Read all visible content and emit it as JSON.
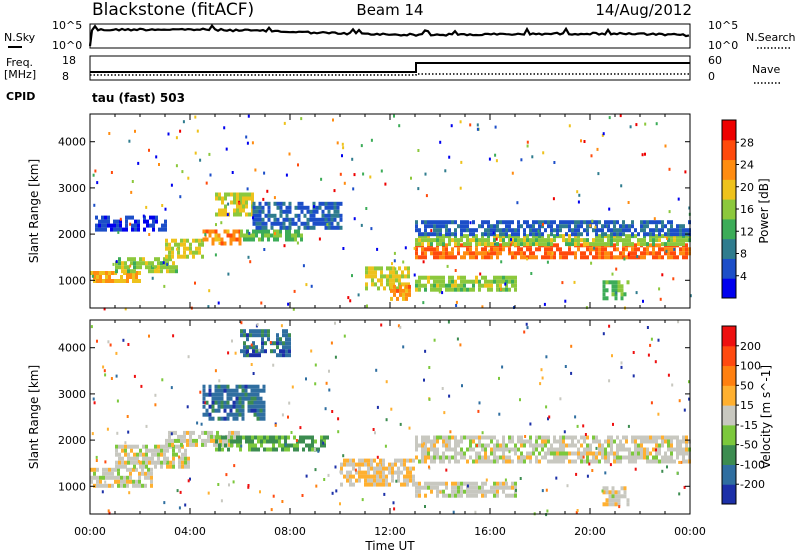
{
  "header": {
    "radar": "Blackstone (fitACF)",
    "beam": "Beam 14",
    "date": "14/Aug/2012"
  },
  "summary_panel": {
    "nsky_label": "N.Sky",
    "nsky_ticks": [
      "10^5",
      "10^0"
    ],
    "nsearch_label": "N.Search",
    "nsearch_ticks": [
      "10^5",
      "10^0"
    ],
    "freq_label_1": "Freq.",
    "freq_label_2": "[MHz]",
    "freq_ticks": [
      "18",
      "8"
    ],
    "nave_label": "Nave",
    "nave_ticks": [
      "60",
      "0"
    ],
    "cpid_label": "CPID",
    "cpid_text": "tau (fast) 503"
  },
  "chart_data": [
    {
      "type": "heatmap",
      "quantity": "Power",
      "ylabel": "Slant Range [km]",
      "yticks": [
        "1000",
        "2000",
        "3000",
        "4000"
      ],
      "ylim": [
        400,
        4600
      ],
      "xlim": [
        0,
        24
      ],
      "colorbar_label": "Power [dB]",
      "colorbar_ticks": [
        "28",
        "24",
        "20",
        "16",
        "12",
        "8",
        "4"
      ],
      "colors": [
        "#0000ee",
        "#1c4ec8",
        "#2f7c8e",
        "#3cac58",
        "#8cc83c",
        "#eec21c",
        "#ff8c10",
        "#ff4a0c",
        "#ee0000"
      ],
      "bands": [
        {
          "t0": 0.0,
          "t1": 2.0,
          "r0": 1000,
          "r1": 1200,
          "level": 20
        },
        {
          "t0": 1.0,
          "t1": 3.5,
          "r0": 1200,
          "r1": 1500,
          "level": 16
        },
        {
          "t0": 3.0,
          "t1": 4.5,
          "r0": 1500,
          "r1": 1900,
          "level": 18
        },
        {
          "t0": 4.5,
          "t1": 6.0,
          "r0": 1800,
          "r1": 2100,
          "level": 22
        },
        {
          "t0": 5.0,
          "t1": 6.5,
          "r0": 2400,
          "r1": 2900,
          "level": 18
        },
        {
          "t0": 6.0,
          "t1": 8.5,
          "r0": 1900,
          "r1": 2100,
          "level": 14
        },
        {
          "t0": 6.5,
          "t1": 10.0,
          "r0": 2100,
          "r1": 2700,
          "level": 8
        },
        {
          "t0": 0.2,
          "t1": 3.0,
          "r0": 2100,
          "r1": 2400,
          "level": 6
        },
        {
          "t0": 11.0,
          "t1": 12.8,
          "r0": 800,
          "r1": 1300,
          "level": 18
        },
        {
          "t0": 12.0,
          "t1": 12.8,
          "r0": 600,
          "r1": 900,
          "level": 22
        },
        {
          "t0": 13.0,
          "t1": 24.0,
          "r0": 1500,
          "r1": 1800,
          "level": 24
        },
        {
          "t0": 13.0,
          "t1": 24.0,
          "r0": 1800,
          "r1": 2000,
          "level": 16
        },
        {
          "t0": 13.0,
          "t1": 24.0,
          "r0": 2000,
          "r1": 2300,
          "level": 8
        },
        {
          "t0": 13.0,
          "t1": 17.0,
          "r0": 800,
          "r1": 1100,
          "level": 16
        },
        {
          "t0": 20.5,
          "t1": 21.5,
          "r0": 600,
          "r1": 1000,
          "level": 14
        }
      ]
    },
    {
      "type": "heatmap",
      "quantity": "Velocity",
      "ylabel": "Slant Range [km]",
      "yticks": [
        "1000",
        "2000",
        "3000",
        "4000"
      ],
      "ylim": [
        400,
        4600
      ],
      "xlim": [
        0,
        24
      ],
      "xticks": [
        "00:00",
        "04:00",
        "08:00",
        "12:00",
        "16:00",
        "20:00",
        "00:00"
      ],
      "xlabel": "Time UT",
      "colorbar_label": "Velocity [m s^-1]",
      "colorbar_ticks": [
        "200",
        "100",
        "50",
        "15",
        "-15",
        "-50",
        "-100",
        "-200"
      ],
      "colors": [
        "#1c30a8",
        "#2f6ea0",
        "#3c8c50",
        "#7cc83c",
        "#c8c8c0",
        "#ffb030",
        "#ff8010",
        "#ff4a10",
        "#ee1010"
      ],
      "bands": [
        {
          "t0": 0.0,
          "t1": 2.5,
          "r0": 1000,
          "r1": 1400,
          "level": 0
        },
        {
          "t0": 1.0,
          "t1": 4.0,
          "r0": 1400,
          "r1": 1900,
          "level": 0
        },
        {
          "t0": 3.0,
          "t1": 6.0,
          "r0": 1900,
          "r1": 2200,
          "level": 0
        },
        {
          "t0": 5.0,
          "t1": 9.5,
          "r0": 1800,
          "r1": 2100,
          "level": -80
        },
        {
          "t0": 4.5,
          "t1": 7.0,
          "r0": 2500,
          "r1": 3200,
          "level": -150
        },
        {
          "t0": 6.0,
          "t1": 8.0,
          "r0": 3800,
          "r1": 4400,
          "level": -150
        },
        {
          "t0": 10.0,
          "t1": 13.0,
          "r0": 1000,
          "r1": 1600,
          "level": 30
        },
        {
          "t0": 13.0,
          "t1": 24.0,
          "r0": 1500,
          "r1": 2100,
          "level": 0
        },
        {
          "t0": 13.0,
          "t1": 17.0,
          "r0": 800,
          "r1": 1100,
          "level": 0
        },
        {
          "t0": 20.5,
          "t1": 21.5,
          "r0": 600,
          "r1": 1000,
          "level": 0
        }
      ]
    }
  ]
}
